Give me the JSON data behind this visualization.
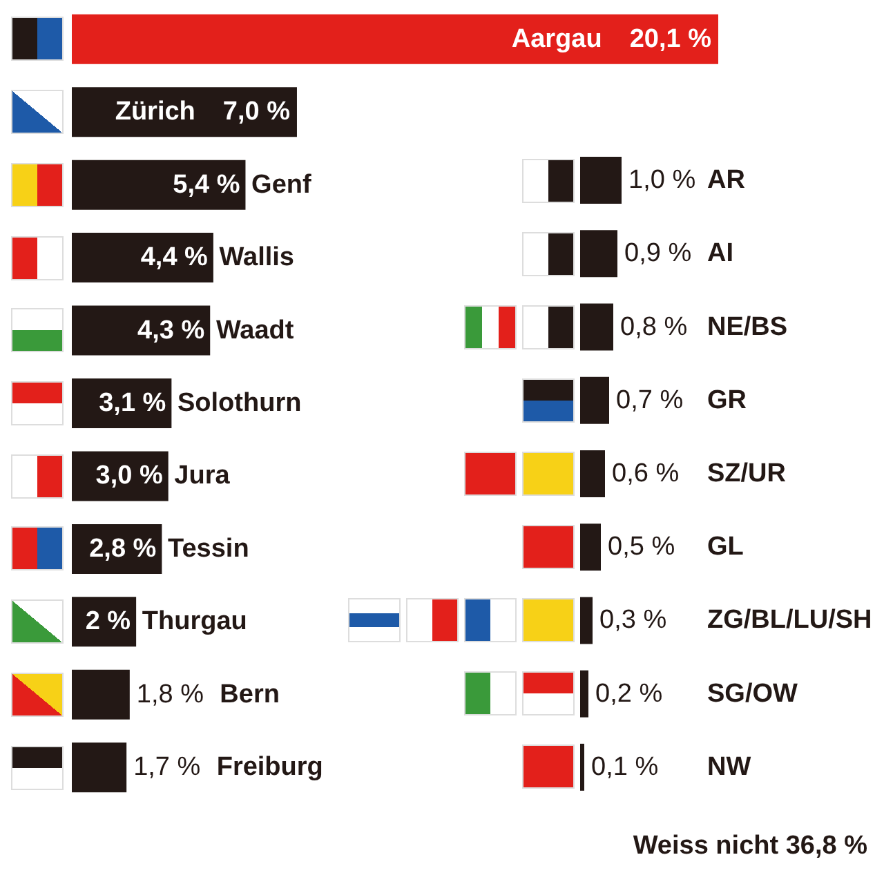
{
  "chart_data": [
    {
      "type": "bar",
      "orientation": "horizontal",
      "categories": [
        "Aargau",
        "Zürich",
        "Genf",
        "Wallis",
        "Waadt",
        "Solothurn",
        "Jura",
        "Tessin",
        "Thurgau",
        "Bern",
        "Freiburg"
      ],
      "values": [
        20.1,
        7.0,
        5.4,
        4.4,
        4.3,
        3.1,
        3.0,
        2.8,
        2,
        1.8,
        1.7
      ],
      "colors": [
        "#e3201b",
        "#231815",
        "#231815",
        "#231815",
        "#231815",
        "#231815",
        "#231815",
        "#231815",
        "#231815",
        "#231815",
        "#231815"
      ],
      "value_labels": [
        "20,1 %",
        "7,0 %",
        "5,4 %",
        "4,4 %",
        "4,3 %",
        "3,1 %",
        "3,0 %",
        "2,8 %",
        "2 %",
        "1,8 %",
        "1,7 %"
      ]
    },
    {
      "type": "bar",
      "orientation": "horizontal",
      "categories": [
        "AR",
        "AI",
        "NE/BS",
        "GR",
        "SZ/UR",
        "GL",
        "ZG/BL/LU/SH",
        "SG/OW",
        "NW"
      ],
      "values": [
        1.0,
        0.9,
        0.8,
        0.7,
        0.6,
        0.5,
        0.3,
        0.2,
        0.1
      ],
      "colors": [
        "#231815",
        "#231815",
        "#231815",
        "#231815",
        "#231815",
        "#231815",
        "#231815",
        "#231815",
        "#231815"
      ],
      "value_labels": [
        "1,0 %",
        "0,9 %",
        "0,8 %",
        "0,7 %",
        "0,6 %",
        "0,5 %",
        "0,3 %",
        "0,2 %",
        "0,1 %"
      ],
      "annotations": [
        "Weiss nicht 36,8 %"
      ]
    }
  ]
}
